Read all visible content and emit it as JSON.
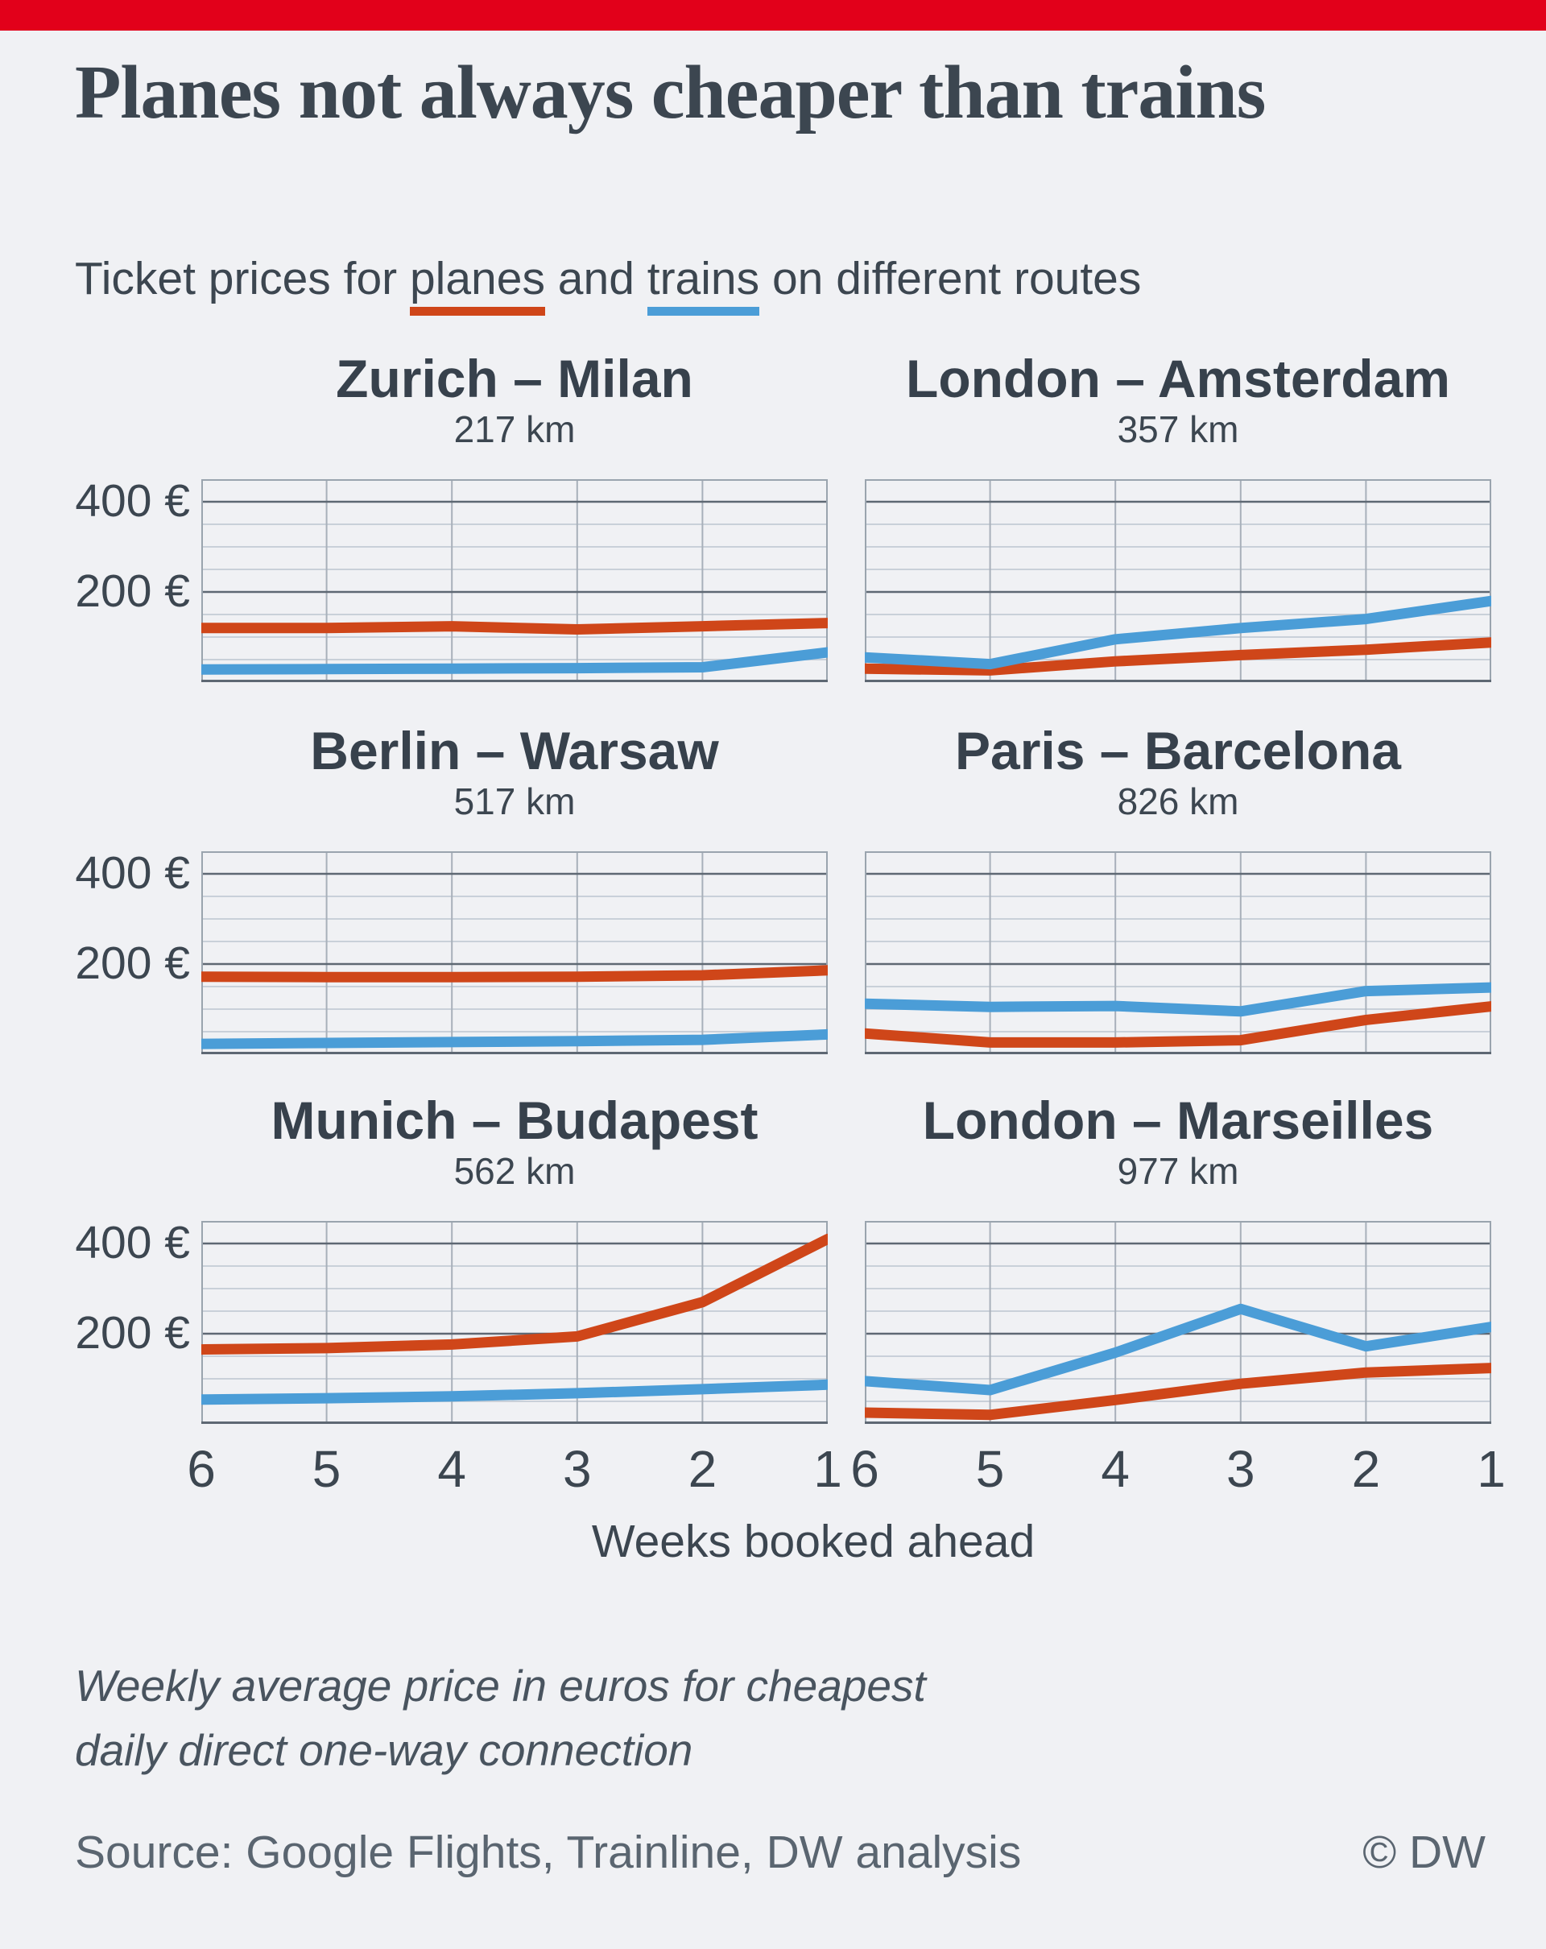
{
  "brand": {
    "bar_color": "#e2001a"
  },
  "header": {
    "title": "Planes not always cheaper than trains",
    "subtitle": {
      "before": "Ticket prices for ",
      "planes_word": "planes",
      "mid": " and ",
      "trains_word": "trains",
      "after": " on different routes"
    }
  },
  "chart_data": {
    "type": "line",
    "x": [
      6,
      5,
      4,
      3,
      2,
      1
    ],
    "x_ticks": [
      "6",
      "5",
      "4",
      "3",
      "2",
      "1"
    ],
    "xlabel": "Weeks booked ahead",
    "ylim": [
      0,
      450
    ],
    "y_grid_step": 50,
    "y_grid_major": [
      200,
      400
    ],
    "y_tick_labels": [
      "400 €",
      "200 €"
    ],
    "grid": true,
    "legend_position": "subtitle-underlines",
    "series_colors": {
      "plane": "#cf4619",
      "train": "#4b9dd7"
    },
    "charts": [
      {
        "title": "Zurich – Milan",
        "distance": "217 km",
        "plane": [
          120,
          120,
          124,
          117,
          124,
          131
        ],
        "train": [
          28,
          29,
          30,
          31,
          33,
          66
        ]
      },
      {
        "title": "London – Amsterdam",
        "distance": "357 km",
        "plane": [
          30,
          26,
          46,
          60,
          72,
          88
        ],
        "train": [
          55,
          40,
          95,
          120,
          140,
          180
        ]
      },
      {
        "title": "Berlin – Warsaw",
        "distance": "517 km",
        "plane": [
          172,
          171,
          171,
          172,
          175,
          186
        ],
        "train": [
          23,
          25,
          27,
          29,
          32,
          44
        ]
      },
      {
        "title": "Paris – Barcelona",
        "distance": "826 km",
        "plane": [
          46,
          26,
          26,
          31,
          76,
          106
        ],
        "train": [
          112,
          105,
          107,
          95,
          140,
          148
        ]
      },
      {
        "title": "Munich – Budapest",
        "distance": "562 km",
        "plane": [
          165,
          168,
          176,
          194,
          270,
          410
        ],
        "train": [
          54,
          57,
          61,
          68,
          77,
          87
        ]
      },
      {
        "title": "London – Marseilles",
        "distance": "977 km",
        "plane": [
          25,
          20,
          53,
          89,
          114,
          124
        ],
        "train": [
          95,
          75,
          158,
          255,
          172,
          215
        ]
      }
    ]
  },
  "footer": {
    "note": "Weekly average price in euros for cheapest\ndaily direct one-way connection",
    "source": "Source: Google Flights, Trainline, DW analysis",
    "copyright": "© DW"
  }
}
